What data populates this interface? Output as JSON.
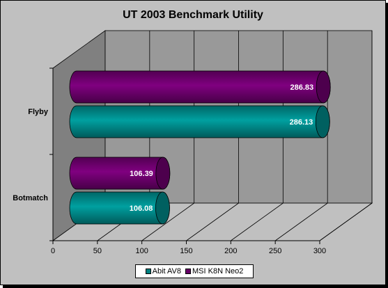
{
  "chart_data": {
    "type": "bar",
    "orientation": "horizontal",
    "style": "3d-cylinder",
    "title": "UT 2003 Benchmark Utility",
    "categories": [
      "Flyby",
      "Botmatch"
    ],
    "series": [
      {
        "name": "Abit AV8",
        "color": "#008080",
        "values": [
          286.13,
          106.08
        ]
      },
      {
        "name": "MSI K8N Neo2",
        "color": "#660066",
        "values": [
          286.83,
          106.39
        ]
      }
    ],
    "xlim": [
      0,
      300
    ],
    "xticks": [
      "0",
      "50",
      "100",
      "150",
      "200",
      "250",
      "300"
    ],
    "grid": true,
    "legend": "bottom",
    "data_labels": true
  }
}
